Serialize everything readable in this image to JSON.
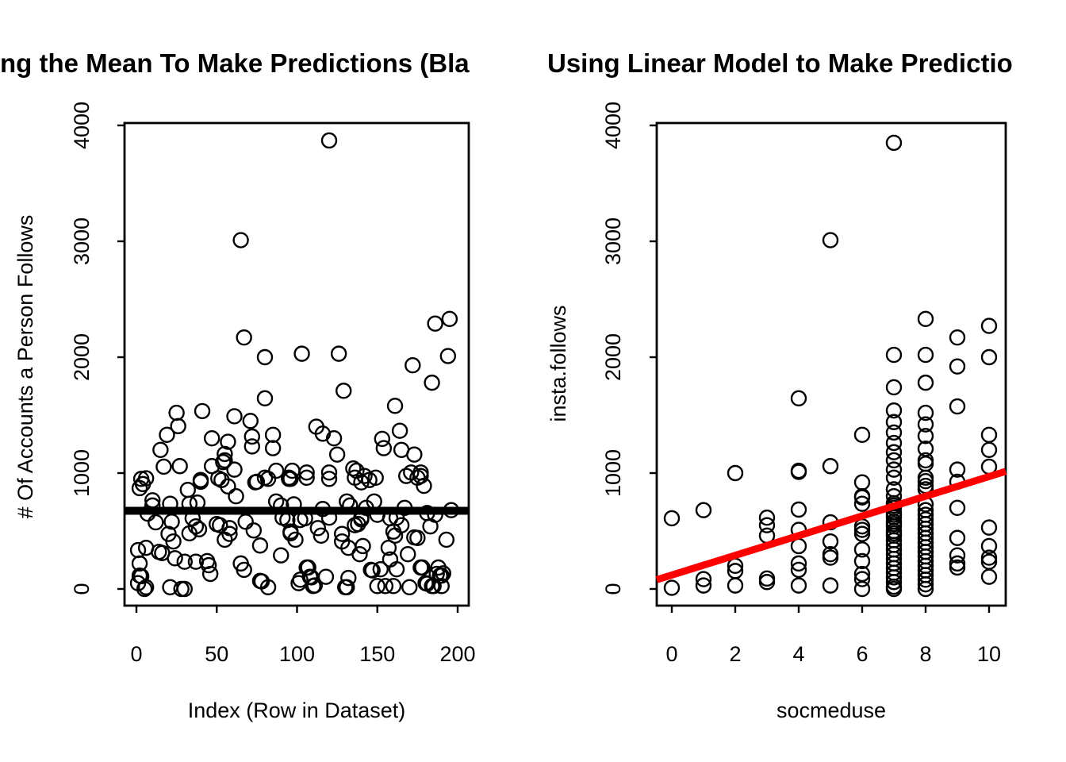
{
  "colors": {
    "background": "#ffffff",
    "text": "#000000",
    "points": "#000000",
    "mean_line": "#000000",
    "regression_line": "#ff0000"
  },
  "chart_data": [
    {
      "type": "scatter",
      "panel": "left",
      "title_full": "Using the Mean To Make Predictions (Black Line)",
      "title": "ng the Mean To Make Predictions (Bla",
      "xlabel": "Index (Row in Dataset)",
      "ylabel": "# Of Accounts a Person Follows",
      "x_ticks": [
        0,
        50,
        100,
        150,
        200
      ],
      "y_ticks": [
        0,
        1000,
        2000,
        3000,
        4000
      ],
      "xlim": [
        -7,
        207
      ],
      "ylim": [
        -145,
        4020
      ],
      "grid": false,
      "legend": "none",
      "marker": "open-circle",
      "mean_line": {
        "value": 675,
        "color": "#000000",
        "width": 10
      },
      "points": [
        [
          1,
          335
        ],
        [
          1,
          50
        ],
        [
          2,
          870
        ],
        [
          2,
          220
        ],
        [
          2,
          115
        ],
        [
          3,
          950
        ],
        [
          3,
          110
        ],
        [
          4,
          905
        ],
        [
          5,
          0
        ],
        [
          6,
          955
        ],
        [
          6,
          355
        ],
        [
          6,
          15
        ],
        [
          7,
          650
        ],
        [
          10,
          765
        ],
        [
          10,
          720
        ],
        [
          12,
          575
        ],
        [
          14,
          320
        ],
        [
          15,
          1200
        ],
        [
          16,
          310
        ],
        [
          17,
          1055
        ],
        [
          19,
          1330
        ],
        [
          20,
          475
        ],
        [
          21,
          735
        ],
        [
          21,
          15
        ],
        [
          22,
          580
        ],
        [
          23,
          410
        ],
        [
          24,
          265
        ],
        [
          25,
          1520
        ],
        [
          26,
          1405
        ],
        [
          27,
          1060
        ],
        [
          28,
          0
        ],
        [
          30,
          235
        ],
        [
          30,
          0
        ],
        [
          32,
          855
        ],
        [
          33,
          735
        ],
        [
          33,
          480
        ],
        [
          35,
          610
        ],
        [
          37,
          540
        ],
        [
          37,
          235
        ],
        [
          38,
          745
        ],
        [
          39,
          515
        ],
        [
          40,
          940
        ],
        [
          40,
          925
        ],
        [
          41,
          1535
        ],
        [
          44,
          240
        ],
        [
          45,
          205
        ],
        [
          46,
          130
        ],
        [
          47,
          1300
        ],
        [
          47,
          1060
        ],
        [
          50,
          560
        ],
        [
          51,
          955
        ],
        [
          52,
          550
        ],
        [
          53,
          940
        ],
        [
          54,
          1095
        ],
        [
          55,
          1165
        ],
        [
          55,
          1110
        ],
        [
          55,
          425
        ],
        [
          57,
          1270
        ],
        [
          57,
          885
        ],
        [
          58,
          525
        ],
        [
          58,
          475
        ],
        [
          61,
          1490
        ],
        [
          61,
          1030
        ],
        [
          62,
          800
        ],
        [
          65,
          3010
        ],
        [
          65,
          220
        ],
        [
          67,
          2170
        ],
        [
          67,
          165
        ],
        [
          68,
          580
        ],
        [
          71,
          1450
        ],
        [
          72,
          1315
        ],
        [
          72,
          1230
        ],
        [
          73,
          505
        ],
        [
          74,
          920
        ],
        [
          75,
          925
        ],
        [
          77,
          375
        ],
        [
          77,
          70
        ],
        [
          78,
          65
        ],
        [
          80,
          2000
        ],
        [
          80,
          1645
        ],
        [
          80,
          960
        ],
        [
          82,
          950
        ],
        [
          82,
          15
        ],
        [
          85,
          1330
        ],
        [
          85,
          1215
        ],
        [
          87,
          1020
        ],
        [
          87,
          755
        ],
        [
          90,
          720
        ],
        [
          90,
          290
        ],
        [
          91,
          615
        ],
        [
          94,
          595
        ],
        [
          95,
          960
        ],
        [
          95,
          950
        ],
        [
          96,
          950
        ],
        [
          96,
          495
        ],
        [
          96,
          480
        ],
        [
          97,
          1020
        ],
        [
          98,
          730
        ],
        [
          99,
          425
        ],
        [
          101,
          50
        ],
        [
          102,
          595
        ],
        [
          102,
          80
        ],
        [
          103,
          2030
        ],
        [
          105,
          610
        ],
        [
          106,
          1005
        ],
        [
          106,
          960
        ],
        [
          106,
          185
        ],
        [
          107,
          185
        ],
        [
          108,
          105
        ],
        [
          109,
          100
        ],
        [
          110,
          25
        ],
        [
          111,
          30
        ],
        [
          112,
          1400
        ],
        [
          113,
          525
        ],
        [
          115,
          460
        ],
        [
          116,
          1340
        ],
        [
          116,
          690
        ],
        [
          118,
          105
        ],
        [
          120,
          3870
        ],
        [
          120,
          1005
        ],
        [
          120,
          950
        ],
        [
          120,
          615
        ],
        [
          123,
          1300
        ],
        [
          125,
          1160
        ],
        [
          126,
          2030
        ],
        [
          128,
          475
        ],
        [
          128,
          410
        ],
        [
          129,
          1710
        ],
        [
          130,
          15
        ],
        [
          131,
          755
        ],
        [
          131,
          15
        ],
        [
          132,
          355
        ],
        [
          132,
          95
        ],
        [
          133,
          720
        ],
        [
          135,
          1040
        ],
        [
          136,
          960
        ],
        [
          136,
          550
        ],
        [
          137,
          1020
        ],
        [
          138,
          560
        ],
        [
          139,
          300
        ],
        [
          140,
          920
        ],
        [
          140,
          615
        ],
        [
          140,
          600
        ],
        [
          141,
          370
        ],
        [
          142,
          975
        ],
        [
          143,
          700
        ],
        [
          145,
          940
        ],
        [
          146,
          165
        ],
        [
          147,
          160
        ],
        [
          148,
          755
        ],
        [
          149,
          960
        ],
        [
          150,
          640
        ],
        [
          150,
          25
        ],
        [
          152,
          170
        ],
        [
          153,
          1295
        ],
        [
          154,
          1215
        ],
        [
          155,
          25
        ],
        [
          157,
          355
        ],
        [
          158,
          610
        ],
        [
          158,
          255
        ],
        [
          160,
          495
        ],
        [
          160,
          25
        ],
        [
          161,
          1580
        ],
        [
          161,
          460
        ],
        [
          162,
          615
        ],
        [
          162,
          170
        ],
        [
          164,
          1365
        ],
        [
          165,
          1200
        ],
        [
          165,
          550
        ],
        [
          167,
          700
        ],
        [
          168,
          975
        ],
        [
          169,
          300
        ],
        [
          170,
          15
        ],
        [
          171,
          1005
        ],
        [
          172,
          1930
        ],
        [
          173,
          1160
        ],
        [
          173,
          445
        ],
        [
          175,
          960
        ],
        [
          175,
          440
        ],
        [
          177,
          1005
        ],
        [
          177,
          975
        ],
        [
          177,
          185
        ],
        [
          178,
          185
        ],
        [
          179,
          890
        ],
        [
          180,
          50
        ],
        [
          181,
          655
        ],
        [
          181,
          45
        ],
        [
          183,
          540
        ],
        [
          184,
          1780
        ],
        [
          184,
          25
        ],
        [
          185,
          25
        ],
        [
          186,
          2290
        ],
        [
          186,
          640
        ],
        [
          187,
          130
        ],
        [
          188,
          185
        ],
        [
          189,
          115
        ],
        [
          190,
          115
        ],
        [
          190,
          25
        ],
        [
          191,
          135
        ],
        [
          193,
          425
        ],
        [
          194,
          2010
        ],
        [
          195,
          2330
        ],
        [
          196,
          680
        ]
      ]
    },
    {
      "type": "scatter",
      "panel": "right",
      "title_full": "Using Linear Model to Make Predictions",
      "title": "Using Linear Model to Make Predictio",
      "xlabel": "socmeduse",
      "ylabel": "insta.follows",
      "x_ticks": [
        0,
        2,
        4,
        6,
        8,
        10
      ],
      "y_ticks": [
        0,
        1000,
        2000,
        3000,
        4000
      ],
      "xlim": [
        -0.48,
        10.53
      ],
      "ylim": [
        -145,
        4020
      ],
      "grid": false,
      "legend": "none",
      "marker": "open-circle",
      "regression_line": {
        "intercept": 120,
        "slope": 85,
        "color": "#ff0000",
        "width": 9
      },
      "points": [
        [
          0,
          610
        ],
        [
          0,
          10
        ],
        [
          1,
          680
        ],
        [
          1,
          85
        ],
        [
          1,
          30
        ],
        [
          2,
          1000
        ],
        [
          2,
          200
        ],
        [
          2,
          155
        ],
        [
          2,
          30
        ],
        [
          3,
          615
        ],
        [
          3,
          550
        ],
        [
          3,
          460
        ],
        [
          3,
          90
        ],
        [
          3,
          60
        ],
        [
          4,
          1645
        ],
        [
          4,
          1020
        ],
        [
          4,
          1010
        ],
        [
          4,
          685
        ],
        [
          4,
          510
        ],
        [
          4,
          370
        ],
        [
          4,
          220
        ],
        [
          4,
          165
        ],
        [
          4,
          30
        ],
        [
          5,
          3010
        ],
        [
          5,
          1060
        ],
        [
          5,
          575
        ],
        [
          5,
          410
        ],
        [
          5,
          300
        ],
        [
          5,
          270
        ],
        [
          5,
          30
        ],
        [
          6,
          1330
        ],
        [
          6,
          920
        ],
        [
          6,
          800
        ],
        [
          6,
          790
        ],
        [
          6,
          735
        ],
        [
          6,
          540
        ],
        [
          6,
          510
        ],
        [
          6,
          475
        ],
        [
          6,
          340
        ],
        [
          6,
          240
        ],
        [
          6,
          130
        ],
        [
          6,
          85
        ],
        [
          6,
          0
        ],
        [
          7,
          3850
        ],
        [
          7,
          2020
        ],
        [
          7,
          1740
        ],
        [
          7,
          1540
        ],
        [
          7,
          1440
        ],
        [
          7,
          1350
        ],
        [
          7,
          1260
        ],
        [
          7,
          1180
        ],
        [
          7,
          1110
        ],
        [
          7,
          1030
        ],
        [
          7,
          960
        ],
        [
          7,
          860
        ],
        [
          7,
          800
        ],
        [
          7,
          740
        ],
        [
          7,
          720
        ],
        [
          7,
          700
        ],
        [
          7,
          660
        ],
        [
          7,
          640
        ],
        [
          7,
          620
        ],
        [
          7,
          580
        ],
        [
          7,
          560
        ],
        [
          7,
          540
        ],
        [
          7,
          500
        ],
        [
          7,
          480
        ],
        [
          7,
          460
        ],
        [
          7,
          420
        ],
        [
          7,
          380
        ],
        [
          7,
          340
        ],
        [
          7,
          300
        ],
        [
          7,
          260
        ],
        [
          7,
          220
        ],
        [
          7,
          180
        ],
        [
          7,
          140
        ],
        [
          7,
          100
        ],
        [
          7,
          60
        ],
        [
          7,
          20
        ],
        [
          7,
          0
        ],
        [
          8,
          2330
        ],
        [
          8,
          2020
        ],
        [
          8,
          1780
        ],
        [
          8,
          1520
        ],
        [
          8,
          1420
        ],
        [
          8,
          1320
        ],
        [
          8,
          1210
        ],
        [
          8,
          1110
        ],
        [
          8,
          1080
        ],
        [
          8,
          960
        ],
        [
          8,
          930
        ],
        [
          8,
          890
        ],
        [
          8,
          860
        ],
        [
          8,
          730
        ],
        [
          8,
          680
        ],
        [
          8,
          640
        ],
        [
          8,
          600
        ],
        [
          8,
          560
        ],
        [
          8,
          520
        ],
        [
          8,
          480
        ],
        [
          8,
          440
        ],
        [
          8,
          400
        ],
        [
          8,
          360
        ],
        [
          8,
          320
        ],
        [
          8,
          280
        ],
        [
          8,
          240
        ],
        [
          8,
          200
        ],
        [
          8,
          160
        ],
        [
          8,
          120
        ],
        [
          8,
          80
        ],
        [
          8,
          40
        ],
        [
          8,
          0
        ],
        [
          9,
          2170
        ],
        [
          9,
          1920
        ],
        [
          9,
          1575
        ],
        [
          9,
          1030
        ],
        [
          9,
          925
        ],
        [
          9,
          700
        ],
        [
          9,
          440
        ],
        [
          9,
          290
        ],
        [
          9,
          220
        ],
        [
          9,
          185
        ],
        [
          10,
          2270
        ],
        [
          10,
          2000
        ],
        [
          10,
          1330
        ],
        [
          10,
          1200
        ],
        [
          10,
          1055
        ],
        [
          10,
          530
        ],
        [
          10,
          370
        ],
        [
          10,
          270
        ],
        [
          10,
          235
        ],
        [
          10,
          105
        ]
      ]
    }
  ]
}
